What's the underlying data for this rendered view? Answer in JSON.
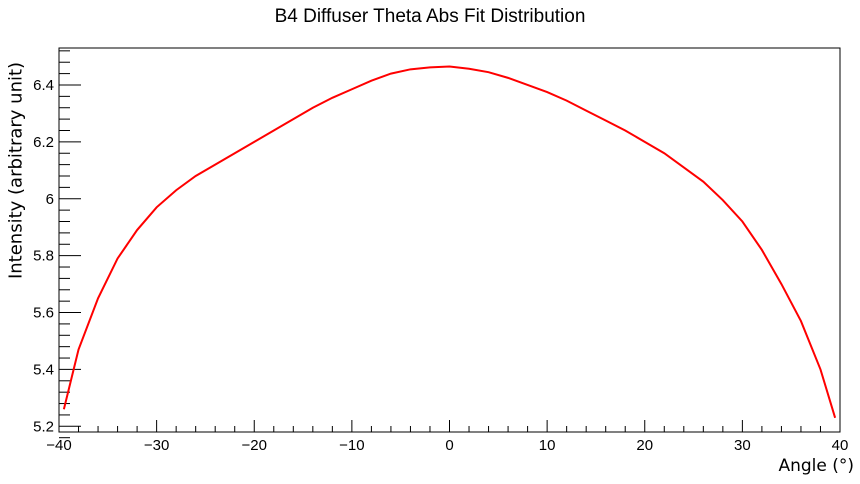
{
  "chart_data": {
    "type": "line",
    "title": "B4 Diffuser Theta Abs Fit Distribution",
    "xlabel": "Angle (°)",
    "ylabel": "Intensity (arbitrary unit)",
    "xlim": [
      -40,
      40
    ],
    "ylim": [
      5.18,
      6.53
    ],
    "x_ticks": [
      -40,
      -30,
      -20,
      -10,
      0,
      10,
      20,
      30,
      40
    ],
    "x_tick_labels": [
      "−40",
      "−30",
      "−20",
      "−10",
      "0",
      "10",
      "20",
      "30",
      "40"
    ],
    "y_ticks": [
      5.2,
      5.4,
      5.6,
      5.8,
      6.0,
      6.2,
      6.4
    ],
    "y_tick_labels": [
      "5.2",
      "5.4",
      "5.6",
      "5.8",
      "6",
      "6.2",
      "6.4"
    ],
    "grid": false,
    "series": [
      {
        "color": "#ff0000",
        "x": [
          -39.5,
          -38,
          -36,
          -34,
          -32,
          -30,
          -28,
          -26,
          -24,
          -22,
          -20,
          -18,
          -16,
          -14,
          -12,
          -10,
          -8,
          -6,
          -4,
          -2,
          0,
          2,
          4,
          6,
          8,
          10,
          12,
          14,
          16,
          18,
          20,
          22,
          24,
          26,
          28,
          30,
          32,
          34,
          36,
          38,
          39.5
        ],
        "y": [
          5.26,
          5.47,
          5.65,
          5.79,
          5.89,
          5.97,
          6.03,
          6.08,
          6.12,
          6.16,
          6.2,
          6.24,
          6.28,
          6.32,
          6.355,
          6.385,
          6.415,
          6.44,
          6.455,
          6.462,
          6.465,
          6.457,
          6.445,
          6.425,
          6.4,
          6.375,
          6.345,
          6.31,
          6.275,
          6.24,
          6.2,
          6.16,
          6.11,
          6.06,
          5.995,
          5.92,
          5.82,
          5.7,
          5.57,
          5.4,
          5.23
        ]
      }
    ]
  }
}
